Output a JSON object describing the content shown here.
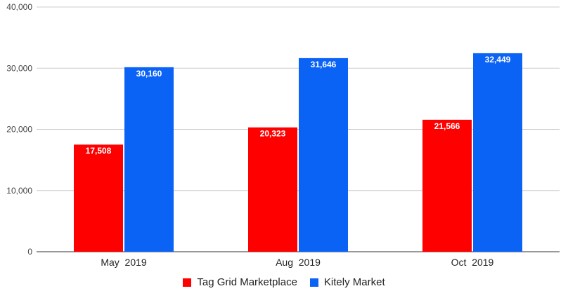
{
  "chart_data": {
    "type": "bar",
    "categories": [
      "May  2019",
      "Aug  2019",
      "Oct  2019"
    ],
    "series": [
      {
        "name": "Tag Grid Marketplace",
        "values": [
          17508,
          20323,
          21566
        ],
        "color": "#ff0000"
      },
      {
        "name": "Kitely Market",
        "values": [
          30160,
          31646,
          32449
        ],
        "color": "#0b63f6"
      }
    ],
    "value_labels": [
      [
        "17,508",
        "20,323",
        "21,566"
      ],
      [
        "30,160",
        "31,646",
        "32,449"
      ]
    ],
    "y_ticks": [
      0,
      10000,
      20000,
      30000,
      40000
    ],
    "y_tick_labels": [
      "0",
      "10,000",
      "20,000",
      "30,000",
      "40,000"
    ],
    "ylim": [
      0,
      40000
    ],
    "grid": true,
    "legend_position": "bottom",
    "title": "",
    "xlabel": "",
    "ylabel": ""
  }
}
